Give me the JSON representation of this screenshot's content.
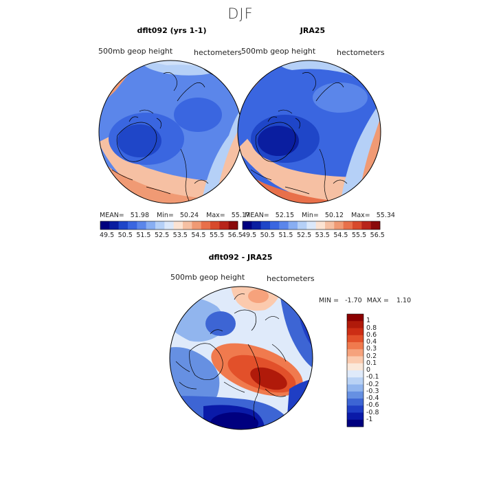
{
  "season": "DJF",
  "panels": [
    {
      "title": "dflt092 (yrs 1-1)",
      "variable": "500mb geop height",
      "units": "hectometers",
      "stats": {
        "mean_label": "MEAN=",
        "mean": "51.98",
        "min_label": "Min=",
        "min": "50.24",
        "max_label": "Max=",
        "max": "55.17"
      }
    },
    {
      "title": "JRA25",
      "variable": "500mb geop height",
      "units": "hectometers",
      "stats": {
        "mean_label": "MEAN=",
        "mean": "52.15",
        "min_label": "Min=",
        "min": "50.12",
        "max_label": "Max=",
        "max": "55.34"
      }
    }
  ],
  "diff_panel": {
    "title": "dflt092 - JRA25",
    "variable": "500mb geop height",
    "units": "hectometers",
    "min_label": "MIN =",
    "min": "-1.70",
    "max_label": "MAX =",
    "max": "1.10"
  },
  "chart_data": [
    {
      "type": "heatmap",
      "projection": "north polar stereographic",
      "title": "dflt092 (yrs 1-1)",
      "variable": "500mb geop height",
      "units": "hectometers",
      "mean": 51.98,
      "min": 50.24,
      "max": 55.17,
      "colorbar_ticks": [
        "49.5",
        "50.5",
        "51.5",
        "52.5",
        "53.5",
        "54.5",
        "55.5",
        "56.5"
      ],
      "colors": [
        "#00007f",
        "#0a1ea0",
        "#1f46c8",
        "#3a66e0",
        "#5b86ea",
        "#88aef2",
        "#b5d0f7",
        "#dbe8fa",
        "#fbe3d3",
        "#f6c0a3",
        "#f09a74",
        "#e8704a",
        "#d84a2c",
        "#b8241a",
        "#8a0a0a"
      ]
    },
    {
      "type": "heatmap",
      "projection": "north polar stereographic",
      "title": "JRA25",
      "variable": "500mb geop height",
      "units": "hectometers",
      "mean": 52.15,
      "min": 50.12,
      "max": 55.34,
      "colorbar_ticks": [
        "49.5",
        "50.5",
        "51.5",
        "52.5",
        "53.5",
        "54.5",
        "55.5",
        "56.5"
      ],
      "colors": [
        "#00007f",
        "#0a1ea0",
        "#1f46c8",
        "#3a66e0",
        "#5b86ea",
        "#88aef2",
        "#b5d0f7",
        "#dbe8fa",
        "#fbe3d3",
        "#f6c0a3",
        "#f09a74",
        "#e8704a",
        "#d84a2c",
        "#b8241a",
        "#8a0a0a"
      ]
    },
    {
      "type": "heatmap",
      "projection": "north polar stereographic",
      "title": "dflt092 - JRA25",
      "variable": "500mb geop height",
      "units": "hectometers",
      "min": -1.7,
      "max": 1.1,
      "colorbar_ticks": [
        "1",
        "0.8",
        "0.6",
        "0.4",
        "0.3",
        "0.2",
        "0.1",
        "0",
        "-0.1",
        "-0.2",
        "-0.3",
        "-0.4",
        "-0.6",
        "-0.8",
        "-1"
      ],
      "colors": [
        "#8b0000",
        "#b01a0a",
        "#cc2d14",
        "#e2502a",
        "#f07a4e",
        "#f6a27c",
        "#fbcaae",
        "#fbe8da",
        "#dfeafa",
        "#b9d2f5",
        "#91b5ee",
        "#6690e2",
        "#3d65d4",
        "#1f3ec4",
        "#0a1aa8",
        "#00007f"
      ]
    }
  ]
}
